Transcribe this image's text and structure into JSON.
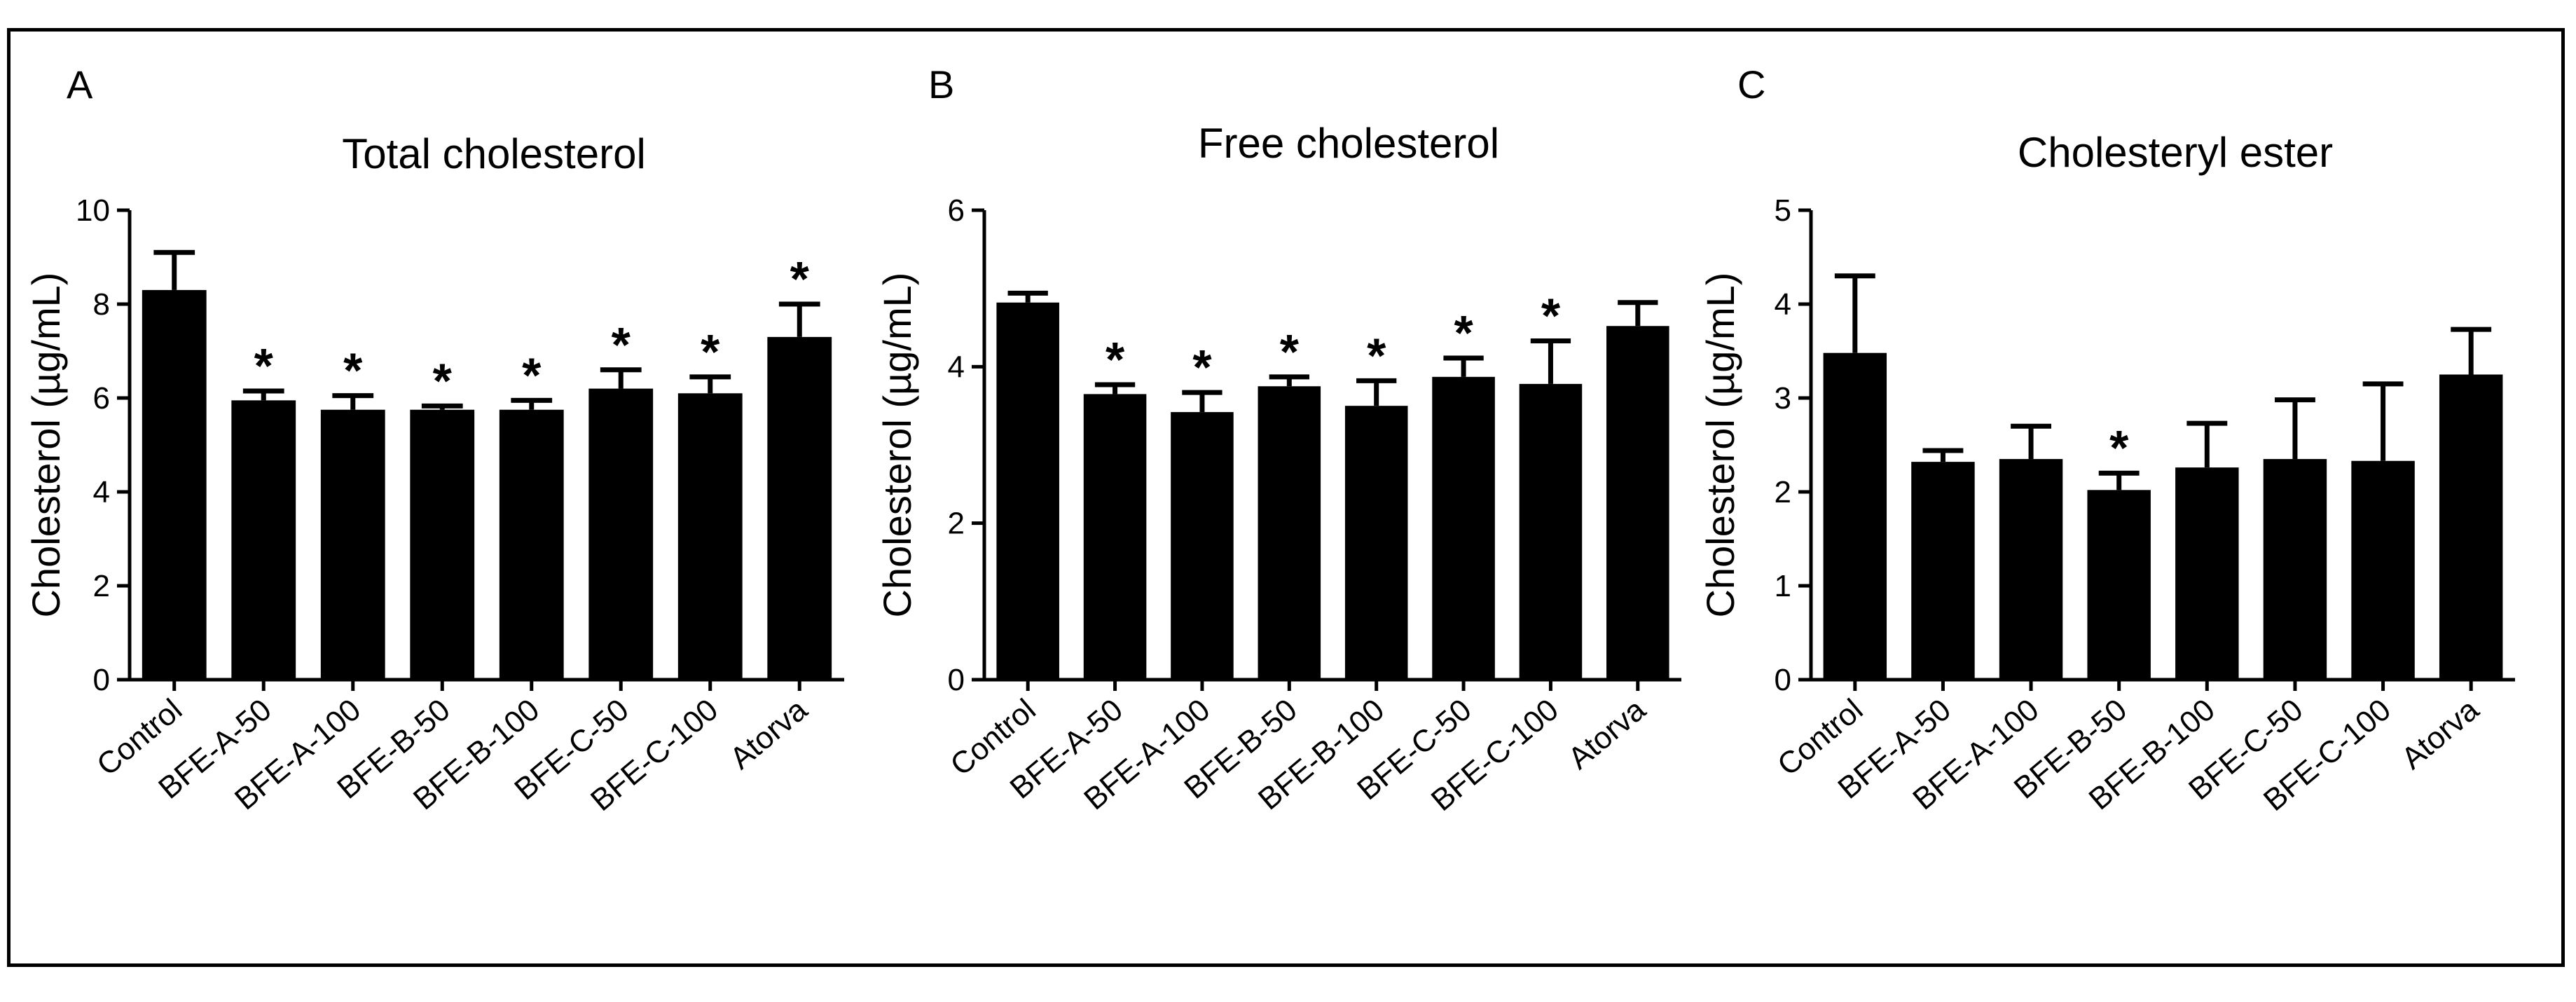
{
  "chart_data": [
    {
      "type": "bar",
      "panel": "A",
      "title": "Total cholesterol",
      "ylabel": "Cholesterol (µg/mL)",
      "xlabel": "",
      "ylim": [
        0,
        10
      ],
      "yticks": [
        0,
        2,
        4,
        6,
        8,
        10
      ],
      "categories": [
        "Control",
        "BFE-A-50",
        "BFE-A-100",
        "BFE-B-50",
        "BFE-B-100",
        "BFE-C-50",
        "BFE-C-100",
        "Atorva"
      ],
      "values": [
        8.3,
        5.95,
        5.75,
        5.75,
        5.75,
        6.2,
        6.1,
        7.3
      ],
      "errors": [
        0.8,
        0.2,
        0.3,
        0.08,
        0.2,
        0.4,
        0.35,
        0.7
      ],
      "significance": [
        "",
        "*",
        "*",
        "*",
        "*",
        "*",
        "*",
        "*"
      ],
      "bar_color": "#000000"
    },
    {
      "type": "bar",
      "panel": "B",
      "title": "Free cholesterol",
      "ylabel": "Cholesterol (µg/mL)",
      "xlabel": "",
      "ylim": [
        0,
        6
      ],
      "yticks": [
        0,
        2,
        4,
        6
      ],
      "categories": [
        "Control",
        "BFE-A-50",
        "BFE-A-100",
        "BFE-B-50",
        "BFE-B-100",
        "BFE-C-50",
        "BFE-C-100",
        "Atorva"
      ],
      "values": [
        4.82,
        3.65,
        3.42,
        3.75,
        3.5,
        3.87,
        3.78,
        4.52
      ],
      "errors": [
        0.12,
        0.12,
        0.25,
        0.12,
        0.32,
        0.24,
        0.55,
        0.3
      ],
      "significance": [
        "",
        "*",
        "*",
        "*",
        "*",
        "*",
        "*",
        ""
      ],
      "bar_color": "#000000"
    },
    {
      "type": "bar",
      "panel": "C",
      "title": "Cholesteryl ester",
      "ylabel": "Cholesterol (µg/mL)",
      "xlabel": "",
      "ylim": [
        0,
        5
      ],
      "yticks": [
        0,
        1,
        2,
        3,
        4,
        5
      ],
      "categories": [
        "Control",
        "BFE-A-50",
        "BFE-A-100",
        "BFE-B-50",
        "BFE-B-100",
        "BFE-C-50",
        "BFE-C-100",
        "Atorva"
      ],
      "values": [
        3.48,
        2.32,
        2.35,
        2.02,
        2.26,
        2.35,
        2.33,
        3.25
      ],
      "errors": [
        0.82,
        0.12,
        0.35,
        0.18,
        0.47,
        0.63,
        0.82,
        0.48
      ],
      "significance": [
        "",
        "",
        "",
        "*",
        "",
        "",
        "",
        ""
      ],
      "bar_color": "#000000"
    }
  ]
}
